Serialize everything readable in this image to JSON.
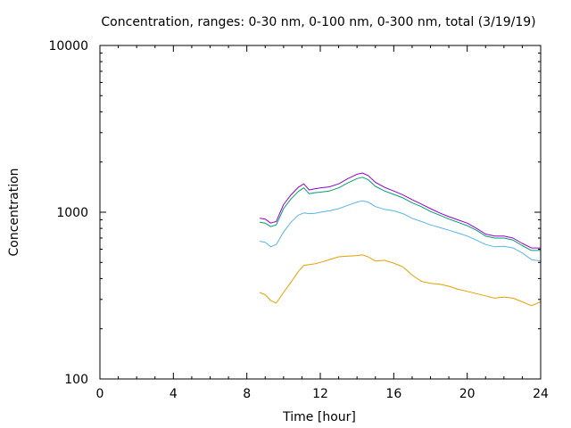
{
  "chart_data": {
    "type": "line",
    "title": "Concentration, ranges: 0-30 nm, 0-100 nm, 0-300 nm, total (3/19/19)",
    "xlabel": "Time [hour]",
    "ylabel": "Concentration",
    "xlim": [
      0,
      24
    ],
    "ylim": [
      100,
      10000
    ],
    "yscale": "log",
    "x_ticks": [
      "0",
      "4",
      "8",
      "12",
      "16",
      "20",
      "24"
    ],
    "y_ticks": [
      "100",
      "1000",
      "10000"
    ],
    "grid": false,
    "legend": "none",
    "x": [
      8.7,
      9.0,
      9.3,
      9.6,
      10.0,
      10.4,
      10.8,
      11.1,
      11.4,
      11.7,
      12.0,
      12.5,
      13.0,
      13.5,
      14.0,
      14.3,
      14.6,
      15.0,
      15.5,
      16.0,
      16.5,
      17.0,
      17.5,
      18.0,
      18.5,
      19.0,
      19.5,
      20.0,
      20.5,
      21.0,
      21.5,
      22.0,
      22.5,
      23.0,
      23.5,
      24.0
    ],
    "series": [
      {
        "color": "#e69f00",
        "values": [
          330,
          320,
          295,
          285,
          330,
          380,
          440,
          480,
          485,
          490,
          500,
          520,
          540,
          545,
          550,
          555,
          540,
          510,
          515,
          495,
          470,
          420,
          385,
          375,
          370,
          360,
          345,
          335,
          325,
          315,
          305,
          310,
          305,
          290,
          275,
          290
        ]
      },
      {
        "color": "#56b4e9",
        "values": [
          670,
          660,
          620,
          640,
          760,
          870,
          960,
          990,
          980,
          985,
          1000,
          1020,
          1050,
          1100,
          1150,
          1170,
          1150,
          1080,
          1040,
          1020,
          980,
          920,
          880,
          840,
          810,
          780,
          750,
          720,
          680,
          640,
          620,
          625,
          610,
          570,
          520,
          510
        ]
      },
      {
        "color": "#009e73",
        "values": [
          870,
          860,
          820,
          840,
          1050,
          1200,
          1330,
          1400,
          1290,
          1310,
          1320,
          1340,
          1400,
          1500,
          1590,
          1620,
          1570,
          1430,
          1340,
          1280,
          1220,
          1140,
          1080,
          1010,
          960,
          910,
          870,
          830,
          780,
          720,
          700,
          700,
          680,
          630,
          590,
          590
        ]
      },
      {
        "color": "#9400d3",
        "values": [
          920,
          910,
          860,
          880,
          1110,
          1270,
          1410,
          1480,
          1360,
          1380,
          1400,
          1420,
          1480,
          1590,
          1690,
          1720,
          1660,
          1510,
          1410,
          1340,
          1270,
          1190,
          1120,
          1050,
          990,
          940,
          900,
          860,
          800,
          740,
          720,
          720,
          700,
          650,
          610,
          610
        ]
      }
    ]
  }
}
